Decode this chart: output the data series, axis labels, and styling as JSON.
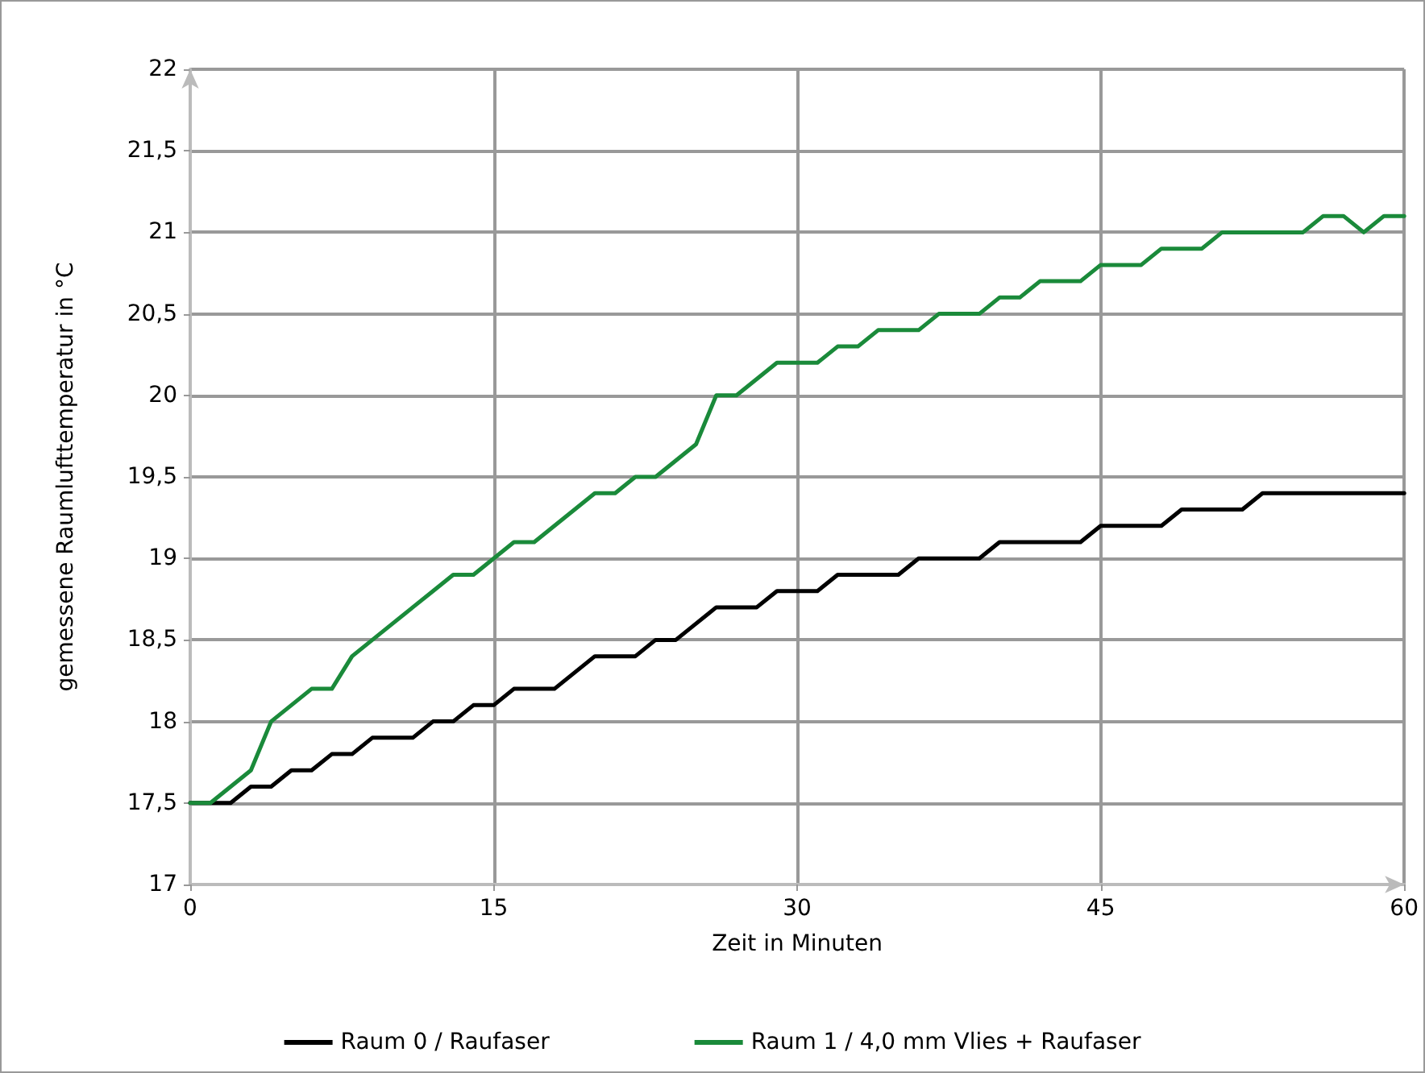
{
  "chart_data": {
    "type": "line",
    "xlabel": "Zeit in Minuten",
    "ylabel": "gemessene Raumlufttemperatur in °C",
    "x": [
      0,
      1,
      2,
      3,
      4,
      5,
      6,
      7,
      8,
      9,
      10,
      11,
      12,
      13,
      14,
      15,
      16,
      17,
      18,
      19,
      20,
      21,
      22,
      23,
      24,
      25,
      26,
      27,
      28,
      29,
      30,
      31,
      32,
      33,
      34,
      35,
      36,
      37,
      38,
      39,
      40,
      41,
      42,
      43,
      44,
      45,
      46,
      47,
      48,
      49,
      50,
      51,
      52,
      53,
      54,
      55,
      56,
      57,
      58,
      59,
      60
    ],
    "series": [
      {
        "name": "Raum 0 / Raufaser",
        "color": "#000000",
        "values": [
          17.5,
          17.5,
          17.5,
          17.6,
          17.6,
          17.7,
          17.7,
          17.8,
          17.8,
          17.9,
          17.9,
          17.9,
          18.0,
          18.0,
          18.1,
          18.1,
          18.2,
          18.2,
          18.2,
          18.3,
          18.4,
          18.4,
          18.4,
          18.5,
          18.5,
          18.6,
          18.7,
          18.7,
          18.7,
          18.8,
          18.8,
          18.8,
          18.9,
          18.9,
          18.9,
          18.9,
          19.0,
          19.0,
          19.0,
          19.0,
          19.1,
          19.1,
          19.1,
          19.1,
          19.1,
          19.2,
          19.2,
          19.2,
          19.2,
          19.3,
          19.3,
          19.3,
          19.3,
          19.4,
          19.4,
          19.4,
          19.4,
          19.4,
          19.4,
          19.4,
          19.4
        ]
      },
      {
        "name": "Raum 1 / 4,0 mm Vlies + Raufaser",
        "color": "#1a8a3a",
        "values": [
          17.5,
          17.5,
          17.6,
          17.7,
          18.0,
          18.1,
          18.2,
          18.2,
          18.4,
          18.5,
          18.6,
          18.7,
          18.8,
          18.9,
          18.9,
          19.0,
          19.1,
          19.1,
          19.2,
          19.3,
          19.4,
          19.4,
          19.5,
          19.5,
          19.6,
          19.7,
          20.0,
          20.0,
          20.1,
          20.2,
          20.2,
          20.2,
          20.3,
          20.3,
          20.4,
          20.4,
          20.4,
          20.5,
          20.5,
          20.5,
          20.6,
          20.6,
          20.7,
          20.7,
          20.7,
          20.8,
          20.8,
          20.8,
          20.9,
          20.9,
          20.9,
          21.0,
          21.0,
          21.0,
          21.0,
          21.0,
          21.1,
          21.1,
          21.0,
          21.1,
          21.1
        ]
      }
    ],
    "xlim": [
      0,
      60
    ],
    "xticks": [
      0,
      15,
      30,
      45,
      60
    ],
    "ylim": [
      17,
      22
    ],
    "yticks": [
      17,
      {
        "value": 17.5,
        "label": "17,5"
      },
      18,
      {
        "value": 18.5,
        "label": "18,5"
      },
      19,
      {
        "value": 19.5,
        "label": "19,5"
      },
      20,
      {
        "value": 20.5,
        "label": "20,5"
      },
      21,
      {
        "value": 21.5,
        "label": "21,5"
      },
      22
    ],
    "grid": true,
    "legend": "bottom",
    "marker": "none",
    "line_style": "solid"
  }
}
